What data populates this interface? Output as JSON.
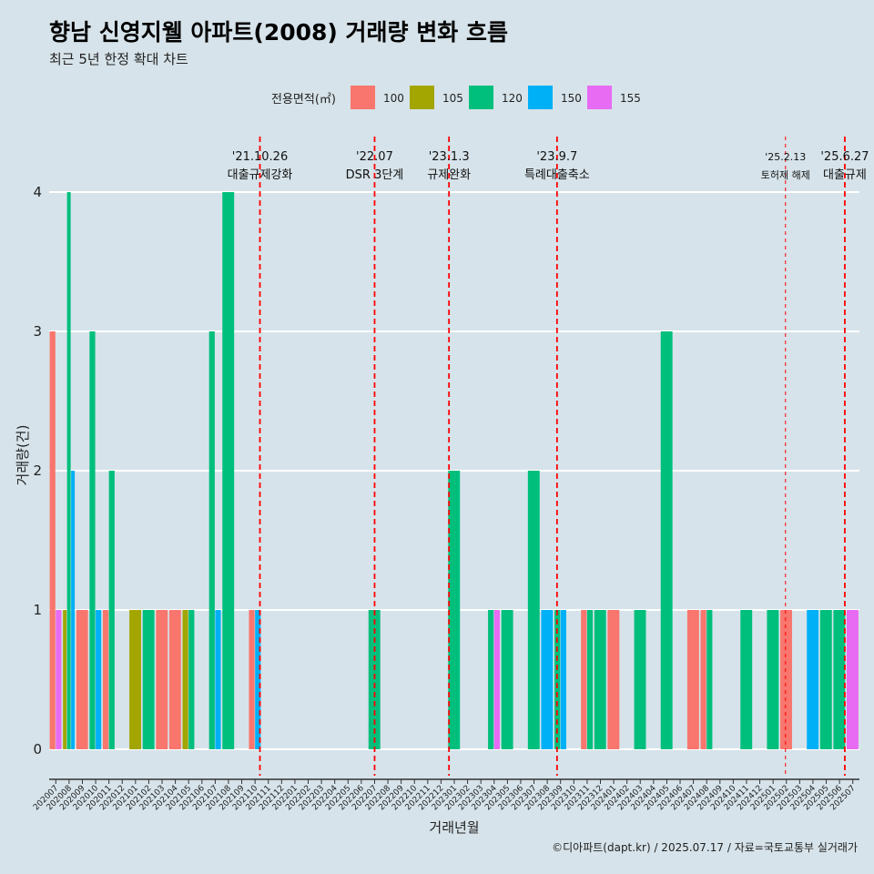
{
  "title": "향남 신영지웰 아파트(2008) 거래량 변화 흐름",
  "subtitle": "최근 5년 한정 확대 차트",
  "caption": "©디아파트(dapt.kr) / 2025.07.17 / 자료=국토교통부 실거래가",
  "colors": {
    "background": "#d6e3ea",
    "grid": "#ffffff",
    "event_line": "#ff0000",
    "series": {
      "100": "#f8766d",
      "105": "#a3a500",
      "120": "#00bf7d",
      "150": "#00b0f6",
      "155": "#e76bf3"
    }
  },
  "chart_data": {
    "type": "bar",
    "title": "향남 신영지웰 아파트(2008) 거래량 변화 흐름",
    "subtitle": "최근 5년 한정 확대 차트",
    "xlabel": "거래년월",
    "ylabel": "거래량(건)",
    "ylim": [
      0,
      4
    ],
    "yticks": [
      0,
      1,
      2,
      3,
      4
    ],
    "grid": true,
    "legend": {
      "title": "전용면적(㎡)",
      "position": "top",
      "entries": [
        "100",
        "105",
        "120",
        "150",
        "155"
      ]
    },
    "categories": [
      "202007",
      "202008",
      "202009",
      "202010",
      "202011",
      "202012",
      "202101",
      "202102",
      "202103",
      "202104",
      "202105",
      "202106",
      "202107",
      "202108",
      "202109",
      "202110",
      "202111",
      "202112",
      "202201",
      "202202",
      "202203",
      "202204",
      "202205",
      "202206",
      "202207",
      "202208",
      "202209",
      "202210",
      "202211",
      "202212",
      "202301",
      "202302",
      "202303",
      "202304",
      "202305",
      "202306",
      "202307",
      "202308",
      "202309",
      "202310",
      "202311",
      "202312",
      "202401",
      "202402",
      "202403",
      "202404",
      "202405",
      "202406",
      "202407",
      "202408",
      "202409",
      "202410",
      "202411",
      "202412",
      "202501",
      "202502",
      "202503",
      "202504",
      "202505",
      "202506",
      "202507"
    ],
    "bars": [
      {
        "month": "202007",
        "segments": [
          {
            "area": "100",
            "value": 3
          },
          {
            "area": "155",
            "value": 1
          }
        ]
      },
      {
        "month": "202008",
        "segments": [
          {
            "area": "105",
            "value": 1
          },
          {
            "area": "120",
            "value": 4
          },
          {
            "area": "150",
            "value": 2
          }
        ]
      },
      {
        "month": "202009",
        "segments": [
          {
            "area": "100",
            "value": 1
          }
        ]
      },
      {
        "month": "202010",
        "segments": [
          {
            "area": "120",
            "value": 3
          },
          {
            "area": "150",
            "value": 1
          }
        ]
      },
      {
        "month": "202011",
        "segments": [
          {
            "area": "100",
            "value": 1
          },
          {
            "area": "120",
            "value": 2
          }
        ]
      },
      {
        "month": "202101",
        "segments": [
          {
            "area": "105",
            "value": 1
          }
        ]
      },
      {
        "month": "202102",
        "segments": [
          {
            "area": "120",
            "value": 1
          }
        ]
      },
      {
        "month": "202103",
        "segments": [
          {
            "area": "100",
            "value": 1
          }
        ]
      },
      {
        "month": "202104",
        "segments": [
          {
            "area": "100",
            "value": 1
          }
        ]
      },
      {
        "month": "202105",
        "segments": [
          {
            "area": "105",
            "value": 1
          },
          {
            "area": "120",
            "value": 1
          }
        ]
      },
      {
        "month": "202107",
        "segments": [
          {
            "area": "120",
            "value": 3
          },
          {
            "area": "150",
            "value": 1
          }
        ]
      },
      {
        "month": "202108",
        "segments": [
          {
            "area": "120",
            "value": 4
          }
        ]
      },
      {
        "month": "202110",
        "segments": [
          {
            "area": "100",
            "value": 1
          },
          {
            "area": "150",
            "value": 1
          }
        ]
      },
      {
        "month": "202207",
        "segments": [
          {
            "area": "120",
            "value": 1
          }
        ]
      },
      {
        "month": "202301",
        "segments": [
          {
            "area": "120",
            "value": 2
          }
        ]
      },
      {
        "month": "202304",
        "segments": [
          {
            "area": "120",
            "value": 1
          },
          {
            "area": "155",
            "value": 1
          }
        ]
      },
      {
        "month": "202305",
        "segments": [
          {
            "area": "120",
            "value": 1
          }
        ]
      },
      {
        "month": "202307",
        "segments": [
          {
            "area": "120",
            "value": 2
          }
        ]
      },
      {
        "month": "202308",
        "segments": [
          {
            "area": "150",
            "value": 1
          }
        ]
      },
      {
        "month": "202309",
        "segments": [
          {
            "area": "120",
            "value": 1
          },
          {
            "area": "150",
            "value": 1
          }
        ]
      },
      {
        "month": "202311",
        "segments": [
          {
            "area": "100",
            "value": 1
          },
          {
            "area": "120",
            "value": 1
          }
        ]
      },
      {
        "month": "202312",
        "segments": [
          {
            "area": "120",
            "value": 1
          }
        ]
      },
      {
        "month": "202401",
        "segments": [
          {
            "area": "100",
            "value": 1
          }
        ]
      },
      {
        "month": "202403",
        "segments": [
          {
            "area": "120",
            "value": 1
          }
        ]
      },
      {
        "month": "202405",
        "segments": [
          {
            "area": "120",
            "value": 3
          }
        ]
      },
      {
        "month": "202407",
        "segments": [
          {
            "area": "100",
            "value": 1
          }
        ]
      },
      {
        "month": "202408",
        "segments": [
          {
            "area": "100",
            "value": 1
          },
          {
            "area": "120",
            "value": 1
          }
        ]
      },
      {
        "month": "202411",
        "segments": [
          {
            "area": "120",
            "value": 1
          }
        ]
      },
      {
        "month": "202501",
        "segments": [
          {
            "area": "120",
            "value": 1
          }
        ]
      },
      {
        "month": "202502",
        "segments": [
          {
            "area": "100",
            "value": 1
          }
        ]
      },
      {
        "month": "202504",
        "segments": [
          {
            "area": "150",
            "value": 1
          }
        ]
      },
      {
        "month": "202505",
        "segments": [
          {
            "area": "120",
            "value": 1
          }
        ]
      },
      {
        "month": "202506",
        "segments": [
          {
            "area": "120",
            "value": 1
          }
        ]
      },
      {
        "month": "202507",
        "segments": [
          {
            "area": "155",
            "value": 1
          }
        ]
      }
    ],
    "events": [
      {
        "date": "2021-10-26",
        "month": "202110",
        "offset_days": 26,
        "line1": "'21.10.26",
        "line2": "대출규제강화",
        "style": "bold-dash"
      },
      {
        "date": "2022-07",
        "month": "202207",
        "offset_days": 15,
        "line1": "'22.07",
        "line2": "DSR 3단계",
        "style": "bold-dash"
      },
      {
        "date": "2023-01-03",
        "month": "202301",
        "offset_days": 3,
        "line1": "'23.1.3",
        "line2": "규제완화",
        "style": "bold-dash"
      },
      {
        "date": "2023-09-07",
        "month": "202309",
        "offset_days": 7,
        "line1": "'23.9.7",
        "line2": "특례대출축소",
        "style": "bold-dash"
      },
      {
        "date": "2025-02-13",
        "month": "202502",
        "offset_days": 13,
        "line1": "'25.2.13",
        "line2": "토허제 해제",
        "style": "thin-dash"
      },
      {
        "date": "2025-06-27",
        "month": "202506",
        "offset_days": 27,
        "line1": "'25.6.27",
        "line2": "대출규제",
        "style": "bold-dash"
      }
    ]
  }
}
